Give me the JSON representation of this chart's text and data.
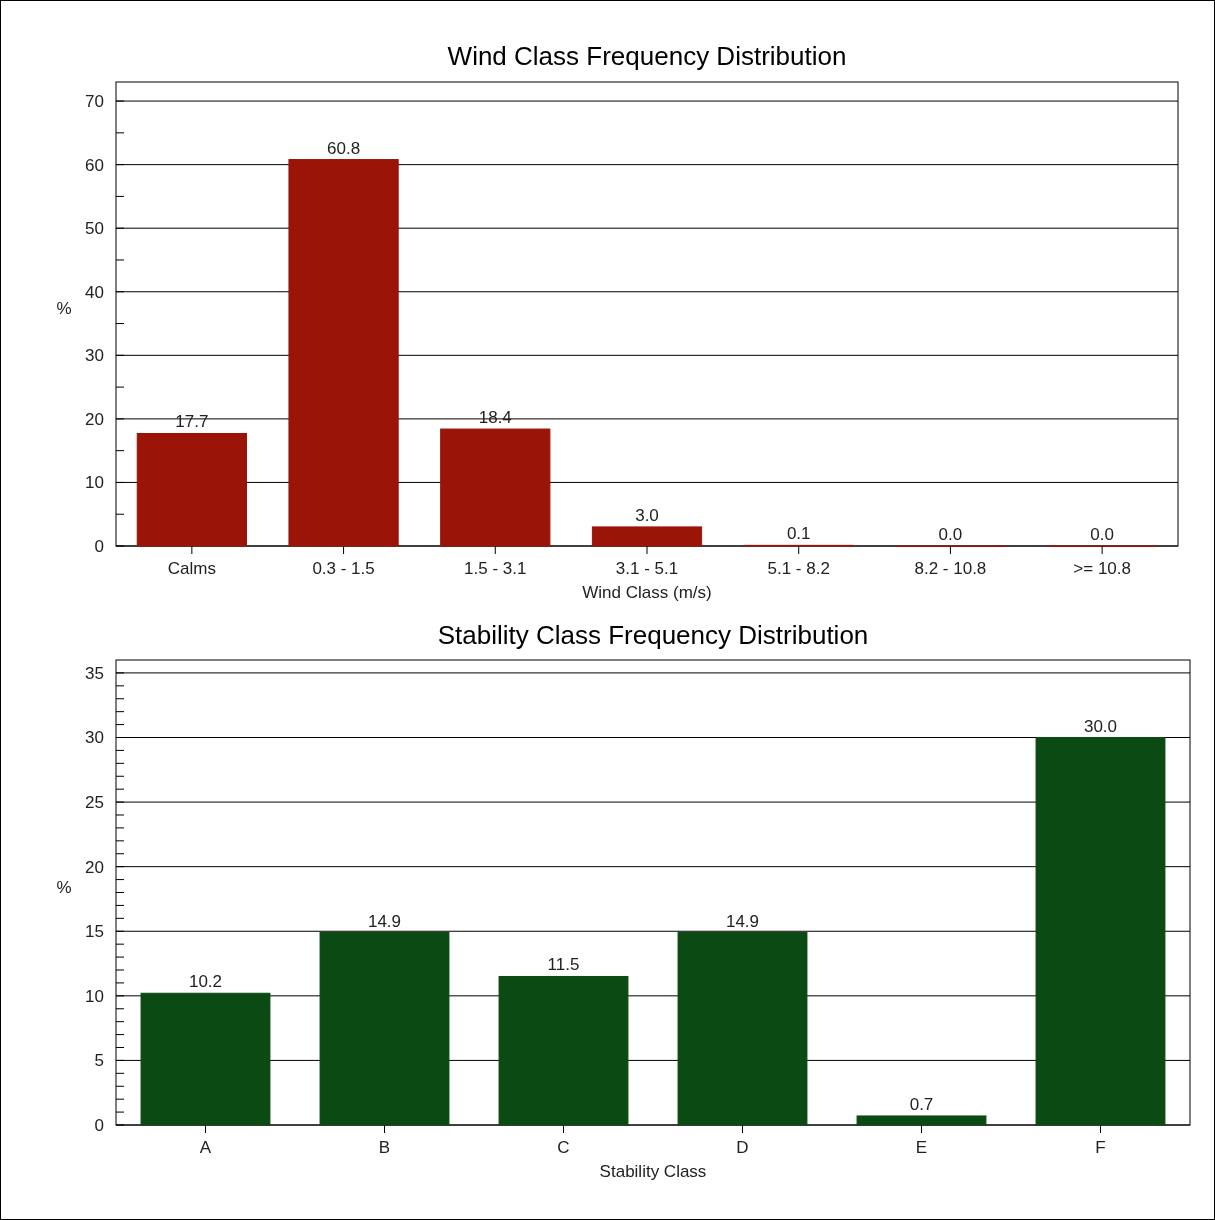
{
  "chart_data": [
    {
      "type": "bar",
      "title": "Wind Class Frequency Distribution",
      "xlabel": "Wind Class (m/s)",
      "ylabel": "%",
      "categories": [
        "Calms",
        "0.3 -  1.5",
        "1.5 -  3.1",
        "3.1 -  5.1",
        "5.1 -  8.2",
        "8.2 - 10.8",
        ">= 10.8"
      ],
      "values": [
        17.7,
        60.8,
        18.4,
        3.0,
        0.1,
        0.0,
        0.0
      ],
      "value_labels": [
        "17.7",
        "60.8",
        "18.4",
        "3.0",
        "0.1",
        "0.0",
        "0.0"
      ],
      "color": "#9b1408",
      "ylim": [
        0,
        73
      ],
      "yticks": [
        0,
        {
          "value": 5,
          "label": null
        },
        10,
        {
          "value": 15,
          "label": null
        },
        20,
        {
          "value": 25,
          "label": null
        },
        30,
        {
          "value": 35,
          "label": null
        },
        40,
        {
          "value": 45,
          "label": null
        },
        50,
        {
          "value": 55,
          "label": null
        },
        60,
        {
          "value": 65,
          "label": null
        },
        70
      ],
      "grid": "y"
    },
    {
      "type": "bar",
      "title": "Stability Class Frequency Distribution",
      "xlabel": "Stability Class",
      "ylabel": "%",
      "categories": [
        "A",
        "B",
        "C",
        "D",
        "E",
        "F"
      ],
      "values": [
        10.2,
        14.9,
        11.5,
        14.9,
        0.7,
        30.0
      ],
      "value_labels": [
        "10.2",
        "14.9",
        "11.5",
        "14.9",
        "0.7",
        "30.0"
      ],
      "color": "#0b4a12",
      "ylim": [
        0,
        36
      ],
      "yticks": [
        0,
        {
          "value": 1,
          "label": null
        },
        {
          "value": 2,
          "label": null
        },
        {
          "value": 3,
          "label": null
        },
        {
          "value": 4,
          "label": null
        },
        5,
        {
          "value": 6,
          "label": null
        },
        {
          "value": 7,
          "label": null
        },
        {
          "value": 8,
          "label": null
        },
        {
          "value": 9,
          "label": null
        },
        10,
        {
          "value": 11,
          "label": null
        },
        {
          "value": 12,
          "label": null
        },
        {
          "value": 13,
          "label": null
        },
        {
          "value": 14,
          "label": null
        },
        15,
        {
          "value": 16,
          "label": null
        },
        {
          "value": 17,
          "label": null
        },
        {
          "value": 18,
          "label": null
        },
        {
          "value": 19,
          "label": null
        },
        20,
        {
          "value": 21,
          "label": null
        },
        {
          "value": 22,
          "label": null
        },
        {
          "value": 23,
          "label": null
        },
        {
          "value": 24,
          "label": null
        },
        25,
        {
          "value": 26,
          "label": null
        },
        {
          "value": 27,
          "label": null
        },
        {
          "value": 28,
          "label": null
        },
        {
          "value": 29,
          "label": null
        },
        30,
        {
          "value": 31,
          "label": null
        },
        {
          "value": 32,
          "label": null
        },
        {
          "value": 33,
          "label": null
        },
        {
          "value": 34,
          "label": null
        },
        35
      ],
      "grid": "y"
    }
  ]
}
